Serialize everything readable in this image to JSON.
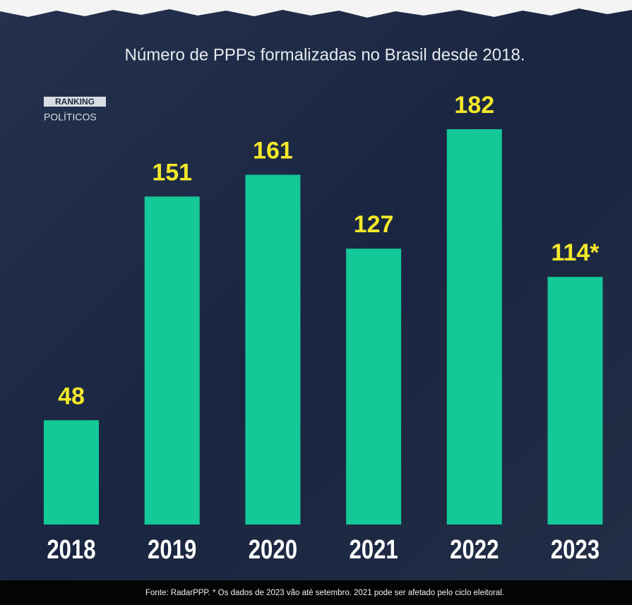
{
  "chart_data": {
    "type": "bar",
    "title": "Número de PPPs formalizadas no Brasil desde 2018.",
    "logo": {
      "top": "RANKING",
      "bottom": "POLÍTICOS"
    },
    "categories": [
      "2018",
      "2019",
      "2020",
      "2021",
      "2022",
      "2023"
    ],
    "values": [
      48,
      151,
      161,
      127,
      182,
      114
    ],
    "value_labels": [
      "48",
      "151",
      "161",
      "127",
      "182",
      "114*"
    ],
    "color": "#14c898",
    "label_color": "#f3e82a",
    "footnote": "Fonte: RadarPPP. * Os dados de 2023 vão até setembro. 2021 pode ser afetado pelo ciclo eleitoral."
  }
}
